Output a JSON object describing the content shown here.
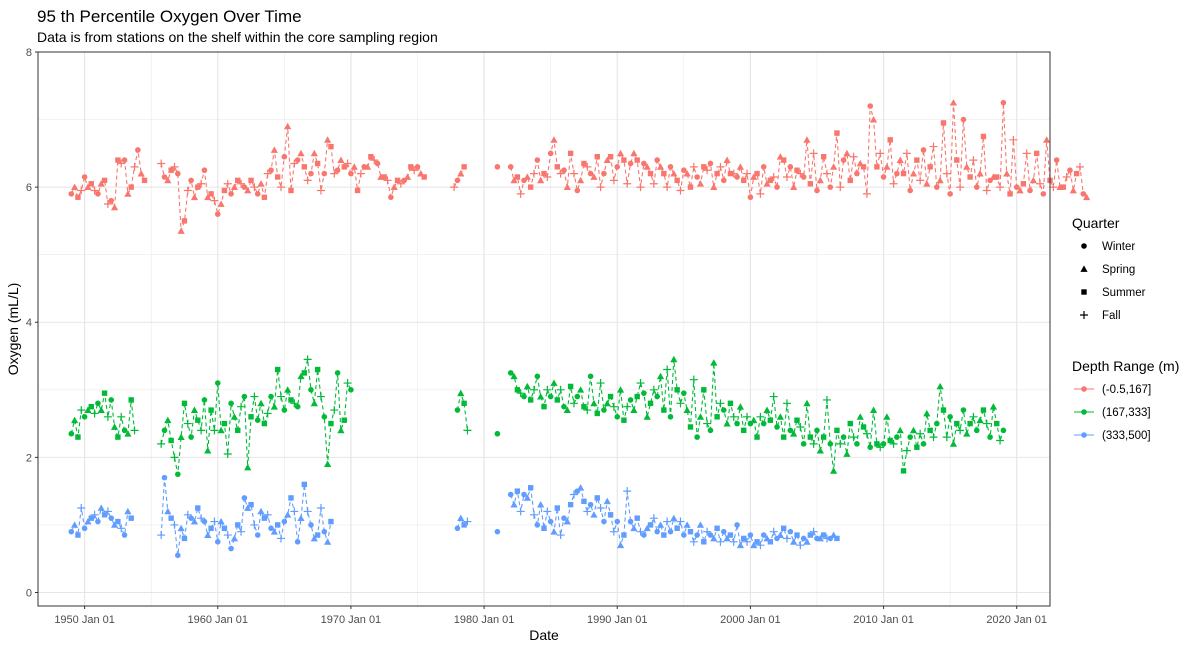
{
  "chart_data": {
    "type": "line",
    "title": "95 th Percentile Oxygen Over Time",
    "subtitle": "Data is from stations on the shelf within the core sampling region",
    "xlabel": "Date",
    "ylabel": "Oxygen (mL/L)",
    "xlim": [
      "1946-07-01",
      "2022-07-01"
    ],
    "ylim": [
      -0.2,
      8.0
    ],
    "x_ticks": [
      "1950 Jan 01",
      "1960 Jan 01",
      "1970 Jan 01",
      "1980 Jan 01",
      "1990 Jan 01",
      "2000 Jan 01",
      "2010 Jan 01",
      "2020 Jan 01"
    ],
    "y_ticks": [
      "0",
      "2",
      "4",
      "6",
      "8"
    ],
    "grid": true,
    "line_style": "dashed",
    "legend_position": "right",
    "legends": [
      {
        "title": "Quarter",
        "entries": [
          {
            "label": "Winter",
            "shape": "circle"
          },
          {
            "label": "Spring",
            "shape": "triangle"
          },
          {
            "label": "Summer",
            "shape": "square"
          },
          {
            "label": "Fall",
            "shape": "plus"
          }
        ]
      },
      {
        "title": "Depth Range (m)",
        "entries": [
          {
            "label": "(-0.5,167]",
            "color": "#F8766D"
          },
          {
            "label": "(167,333]",
            "color": "#00BA38"
          },
          {
            "label": "(333,500]",
            "color": "#619CFF"
          }
        ]
      }
    ],
    "quarter_order": [
      "Winter",
      "Spring",
      "Summer",
      "Fall"
    ],
    "series": [
      {
        "name": "(-0.5,167]",
        "color": "#F8766D",
        "segments": [
          {
            "start": "1949.0",
            "values": [
              5.9,
              6.0,
              5.85,
              5.95,
              6.15,
              6.0,
              6.05,
              5.95,
              5.9,
              6.05,
              6.1,
              5.75,
              5.8,
              5.7,
              6.4,
              6.35,
              6.4,
              5.9,
              6.0,
              6.3,
              6.55,
              6.2,
              6.1
            ]
          },
          {
            "start": "1955.75",
            "values": [
              6.35,
              6.15,
              6.1,
              6.25,
              6.3,
              6.2,
              5.35,
              5.5,
              5.95,
              6.1,
              5.85,
              6.0,
              6.05,
              6.25,
              5.85,
              5.9,
              5.8,
              5.6,
              5.75,
              5.95,
              6.05,
              5.9,
              6.0,
              6.1,
              6.05,
              6.0,
              5.95,
              6.1,
              6.0,
              5.9,
              6.05,
              5.85,
              6.2,
              6.25,
              6.55,
              6.15,
              6.0,
              6.45,
              6.9,
              5.95,
              6.35,
              6.4,
              6.5,
              6.3,
              6.1,
              6.2,
              6.5,
              6.35,
              5.95,
              6.2,
              6.7,
              6.6,
              6.2,
              6.25,
              6.4,
              6.3,
              6.35,
              6.2,
              6.3,
              5.95,
              6.2,
              6.3,
              6.3,
              6.45,
              6.4,
              6.35,
              6.15,
              6.15,
              6.1,
              5.85,
              6.0,
              6.1,
              6.05,
              6.1,
              6.15,
              6.3,
              6.25,
              6.3,
              6.2,
              6.15
            ]
          },
          {
            "start": "1977.75",
            "values": [
              6.0,
              6.1,
              6.2,
              6.3
            ]
          },
          {
            "start": "1981.0",
            "values": [
              6.3
            ]
          },
          {
            "start": "1982.0",
            "values": [
              6.3,
              6.1,
              6.15,
              5.9,
              6.1,
              6.15,
              6.0,
              6.2,
              6.4,
              6.1,
              6.2,
              6.15,
              6.5,
              6.7,
              6.3,
              6.2,
              6.25,
              6.0,
              6.5,
              6.2,
              5.95,
              6.1,
              6.35,
              6.3,
              6.2,
              6.15,
              6.45,
              6.0,
              6.2,
              6.4,
              6.45,
              6.1,
              6.3,
              6.5,
              6.4,
              6.05,
              6.35,
              6.5,
              6.4,
              6.0,
              6.35,
              6.3,
              6.2,
              6.05,
              6.4,
              6.3,
              6.2,
              6.0,
              6.3,
              6.2,
              6.1,
              5.95,
              6.25,
              6.2,
              6.0,
              6.3,
              6.15,
              6.05,
              6.3,
              6.25,
              6.35,
              6.0,
              6.2,
              6.3,
              6.1,
              6.4,
              6.2,
              6.2,
              6.15,
              6.3,
              6.1,
              6.2,
              5.85,
              6.15,
              6.2,
              5.9,
              6.3,
              6.05,
              6.1,
              6.15,
              6.0,
              6.45,
              6.4,
              6.15,
              6.3,
              6.0,
              6.25,
              6.2,
              6.15,
              6.7,
              6.05,
              6.5,
              5.95,
              6.1,
              6.45,
              6.2,
              6.0,
              6.3,
              6.8,
              6.0,
              6.4,
              6.5,
              6.1,
              6.45,
              6.2,
              6.35,
              6.3,
              5.9,
              7.2,
              7.0,
              6.3,
              6.5,
              6.15,
              6.3,
              6.7,
              6.05,
              6.2,
              6.4,
              6.2,
              6.5,
              5.95,
              6.2,
              6.4,
              6.1,
              6.55,
              6.05,
              6.3,
              6.6,
              6.0,
              6.1,
              6.95,
              6.2,
              5.9,
              7.25,
              6.4,
              6.0,
              7.0,
              6.3,
              6.15,
              6.4,
              6.0,
              6.2,
              6.75,
              5.95,
              6.1,
              6.15,
              6.15,
              6.0,
              7.25,
              6.2,
              5.9,
              6.7,
              6.0,
              5.95,
              6.05,
              6.5,
              5.95,
              6.1,
              6.5,
              6.05,
              5.9,
              6.7,
              6.1,
              6.0,
              6.4,
              6.0,
              6.0,
              6.15,
              6.25,
              5.95,
              6.2,
              6.3,
              5.9,
              5.85
            ]
          }
        ]
      },
      {
        "name": "(167,333]",
        "color": "#00BA38",
        "segments": [
          {
            "start": "1949.0",
            "values": [
              2.35,
              2.55,
              2.3,
              2.7,
              2.6,
              2.7,
              2.75,
              2.65,
              2.8,
              2.7,
              2.95,
              2.6,
              2.85,
              2.45,
              2.3,
              2.6,
              2.4,
              2.35,
              2.85,
              2.4
            ]
          },
          {
            "start": "1955.75",
            "values": [
              2.2,
              2.4,
              2.55,
              2.25,
              2.0,
              1.75,
              2.3,
              2.8,
              2.5,
              2.3,
              2.7,
              2.55,
              2.4,
              2.85,
              2.1,
              2.7,
              2.4,
              3.1,
              2.4,
              2.5,
              2.05,
              2.8,
              2.6,
              2.4,
              2.75,
              2.9,
              1.85,
              2.6,
              2.9,
              2.55,
              2.8,
              2.5,
              2.65,
              2.9,
              2.75,
              3.3,
              2.9,
              2.7,
              3.0,
              2.85,
              2.8,
              2.75,
              3.2,
              3.25,
              3.45,
              3.0,
              2.8,
              3.3,
              2.9,
              2.6,
              1.9,
              2.5,
              2.7,
              3.25,
              2.4,
              2.55,
              3.1,
              3.0
            ]
          },
          {
            "start": "1978.0",
            "values": [
              2.7,
              2.95,
              2.8,
              2.4
            ]
          },
          {
            "start": "1981.0",
            "values": [
              2.35
            ]
          },
          {
            "start": "1982.0",
            "values": [
              3.25,
              3.2,
              3.0,
              2.95,
              2.9,
              3.05,
              2.85,
              3.0,
              3.2,
              2.9,
              2.75,
              3.0,
              2.9,
              3.1,
              2.85,
              3.0,
              2.75,
              2.7,
              3.05,
              2.8,
              2.9,
              3.0,
              2.75,
              2.7,
              3.2,
              2.8,
              2.65,
              3.1,
              2.7,
              2.8,
              2.9,
              2.75,
              2.6,
              3.0,
              2.55,
              2.75,
              2.85,
              2.7,
              2.9,
              3.1,
              2.95,
              2.6,
              2.8,
              3.0,
              2.9,
              3.2,
              2.7,
              3.3,
              2.6,
              3.45,
              3.0,
              2.8,
              2.95,
              2.7,
              2.45,
              3.15,
              2.3,
              2.6,
              3.0,
              2.5,
              2.4,
              3.4,
              2.6,
              2.8,
              2.7,
              2.5,
              2.8,
              2.6,
              2.5,
              2.75,
              2.4,
              2.6,
              2.5,
              2.55,
              2.3,
              2.6,
              2.5,
              2.7,
              2.55,
              2.9,
              2.45,
              2.6,
              2.3,
              2.8,
              2.4,
              2.35,
              2.55,
              2.45,
              2.2,
              2.8,
              2.3,
              2.2,
              2.4,
              2.1,
              2.3,
              2.85,
              2.2,
              1.8,
              2.4,
              2.2,
              2.3,
              2.05,
              2.5,
              2.3,
              2.2,
              2.6,
              2.45,
              2.35,
              2.15,
              2.7,
              2.2,
              2.15,
              2.2,
              2.6,
              2.25,
              2.2,
              2.3,
              2.4,
              1.8,
              2.1,
              2.3,
              2.4,
              2.15,
              2.35,
              2.2,
              2.65,
              2.4,
              2.3,
              2.5,
              3.05,
              2.7,
              2.3,
              2.6,
              2.2,
              2.5,
              2.4,
              2.7,
              2.35,
              2.5,
              2.6,
              2.4,
              2.55,
              2.7,
              2.5,
              2.3,
              2.75,
              2.5,
              2.25,
              2.4
            ]
          }
        ]
      },
      {
        "name": "(333,500]",
        "color": "#619CFF",
        "segments": [
          {
            "start": "1949.0",
            "values": [
              0.9,
              1.0,
              0.85,
              1.25,
              0.95,
              1.05,
              1.1,
              1.15,
              1.05,
              1.25,
              1.15,
              1.2,
              1.1,
              1.0,
              1.05,
              0.95,
              0.85,
              1.2,
              1.1
            ]
          },
          {
            "start": "1955.75",
            "values": [
              0.85,
              1.7,
              1.2,
              1.1,
              1.0,
              0.55,
              0.95,
              0.8,
              1.15,
              1.1,
              1.05,
              1.25,
              1.1,
              1.05,
              0.85,
              0.95,
              1.05,
              0.75,
              1.05,
              0.95,
              0.85,
              0.65,
              0.8,
              1.0,
              0.9,
              1.4,
              1.25,
              1.3,
              1.0,
              0.85,
              1.2,
              1.1,
              1.15,
              0.95,
              0.9,
              1.0,
              0.8,
              1.05,
              1.15,
              1.4,
              1.2,
              0.75,
              1.1,
              1.6,
              1.2,
              1.0,
              0.8,
              0.85,
              1.25,
              0.9,
              0.75,
              1.05
            ]
          },
          {
            "start": "1978.0",
            "values": [
              0.95,
              1.1,
              1.0,
              1.05
            ]
          },
          {
            "start": "1981.0",
            "values": [
              0.9
            ]
          },
          {
            "start": "1982.0",
            "values": [
              1.45,
              1.3,
              1.5,
              1.2,
              1.45,
              1.4,
              1.55,
              1.15,
              1.0,
              1.3,
              0.95,
              1.2,
              1.05,
              0.9,
              1.25,
              0.85,
              1.1,
              1.05,
              1.3,
              1.45,
              1.5,
              1.55,
              1.35,
              1.2,
              1.3,
              1.15,
              1.4,
              1.25,
              1.05,
              1.35,
              1.15,
              0.9,
              1.05,
              0.7,
              0.85,
              1.5,
              1.05,
              0.95,
              1.1,
              0.9,
              0.85,
              0.95,
              1.0,
              1.1,
              0.9,
              1.0,
              0.85,
              1.05,
              0.9,
              1.1,
              0.95,
              1.05,
              0.85,
              1.0,
              0.9,
              0.75,
              0.85,
              1.0,
              0.75,
              0.9,
              0.85,
              0.8,
              0.95,
              0.75,
              0.9,
              0.8,
              0.85,
              0.75,
              1.0,
              0.7,
              0.8,
              0.75,
              0.85,
              0.7,
              0.75,
              0.7,
              0.85,
              0.8,
              0.75,
              0.9,
              0.8,
              0.85,
              0.95,
              0.8,
              0.9,
              0.75,
              0.85,
              0.7,
              0.8,
              0.75,
              0.85,
              0.9,
              0.8,
              0.8,
              0.85,
              0.8,
              0.8,
              0.85,
              0.8
            ]
          }
        ]
      }
    ]
  }
}
